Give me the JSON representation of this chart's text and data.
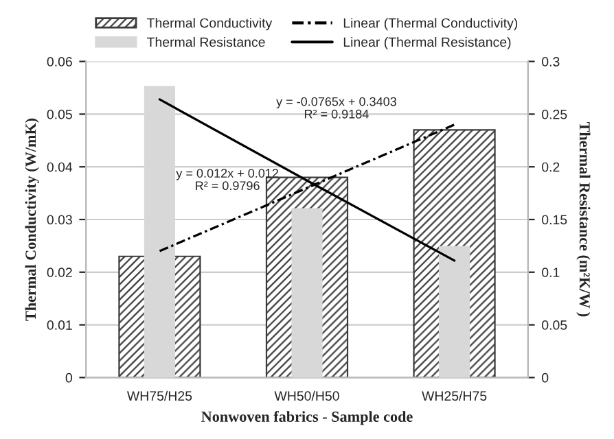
{
  "chart_data": {
    "type": "bar",
    "xlabel": "Nonwoven fabrics - Sample code",
    "ylabel": "Thermal Conductivity (W/mK)",
    "y2label": "Thermal Resistance (m²K/W )",
    "categories": [
      "WH75/H25",
      "WH50/H50",
      "WH25/H75"
    ],
    "series": [
      {
        "name": "Thermal Conductivity",
        "color": "#3a3a3a",
        "values": [
          0.023,
          0.038,
          0.047
        ]
      },
      {
        "name": "Thermal Resistance",
        "color": "#d8d8d8",
        "values": [
          0.276,
          0.16,
          0.124
        ],
        "axis": "y2"
      },
      {
        "name": "Linear (Thermal Conductivity)",
        "type": "line",
        "color": "#000000",
        "line_style": "dashed",
        "values": [
          0.024,
          0.036,
          0.048
        ]
      },
      {
        "name": "Linear (Thermal Resistance)",
        "type": "line",
        "color": "#000000",
        "line_style": "solid",
        "values": [
          0.264,
          0.187,
          0.111
        ],
        "axis": "y2"
      }
    ],
    "ylim": [
      0,
      0.06
    ],
    "yticks": [
      0,
      0.01,
      0.02,
      0.03,
      0.04,
      0.05,
      0.06
    ],
    "y2lim": [
      0,
      0.3
    ],
    "y2ticks": [
      0,
      0.05,
      0.1,
      0.15,
      0.2,
      0.25,
      0.3
    ],
    "annotations": [
      "y = -0.0765x + 0.3403\nR² = 0.9184",
      "y = 0.012x + 0.012\nR² = 0.9796"
    ],
    "grid": "y",
    "legend": "top",
    "marker": "none"
  }
}
